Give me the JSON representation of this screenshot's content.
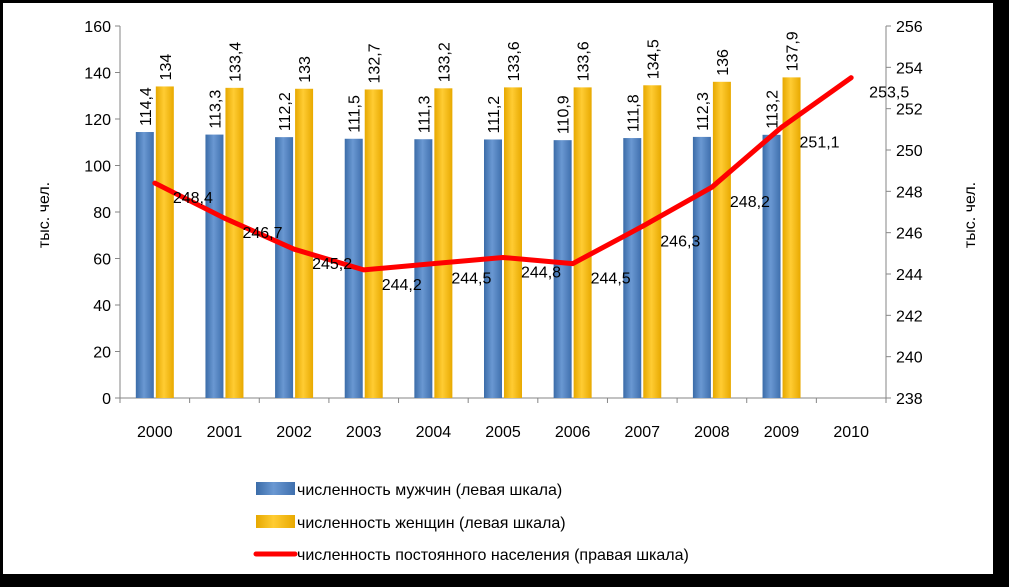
{
  "chart_data": {
    "type": "bar",
    "categories": [
      "2000",
      "2001",
      "2002",
      "2003",
      "2004",
      "2005",
      "2006",
      "2007",
      "2008",
      "2009",
      "2010"
    ],
    "series": [
      {
        "name": "численность мужчин (левая шкала)",
        "axis": "left",
        "kind": "bar",
        "color": "#4F81BD",
        "values": [
          114.4,
          113.3,
          112.2,
          111.5,
          111.3,
          111.2,
          110.9,
          111.8,
          112.3,
          113.2,
          null
        ],
        "labels": [
          "114,4",
          "113,3",
          "112,2",
          "111,5",
          "111,3",
          "111,2",
          "110,9",
          "111,8",
          "112,3",
          "113,2",
          ""
        ]
      },
      {
        "name": "численность женщин (левая шкала)",
        "axis": "left",
        "kind": "bar",
        "color": "#FFC000",
        "values": [
          134,
          133.4,
          133,
          132.7,
          133.2,
          133.6,
          133.6,
          134.5,
          136,
          137.9,
          null
        ],
        "labels": [
          "134",
          "133,4",
          "133",
          "132,7",
          "133,2",
          "133,6",
          "133,6",
          "134,5",
          "136",
          "137,9",
          ""
        ]
      },
      {
        "name": "численность постоянного населения (правая шкала)",
        "axis": "right",
        "kind": "line",
        "color": "#FF0000",
        "values": [
          248.4,
          246.7,
          245.2,
          244.2,
          244.5,
          244.8,
          244.5,
          246.3,
          248.2,
          251.1,
          253.5
        ],
        "labels": [
          "248,4",
          "246,7",
          "245,2",
          "244,2",
          "244,5",
          "244,8",
          "244,5",
          "246,3",
          "248,2",
          "251,1",
          "253,5"
        ]
      }
    ],
    "y_left": {
      "label": "тыс. чел.",
      "ylim": [
        0,
        160
      ],
      "ticks": [
        "0",
        "20",
        "40",
        "60",
        "80",
        "100",
        "120",
        "140",
        "160"
      ]
    },
    "y_right": {
      "label": "тыс. чел.",
      "ylim": [
        238,
        256
      ],
      "ticks": [
        "238",
        "240",
        "242",
        "244",
        "246",
        "248",
        "250",
        "252",
        "254",
        "256"
      ]
    },
    "grid": false,
    "legend": "bottom"
  }
}
